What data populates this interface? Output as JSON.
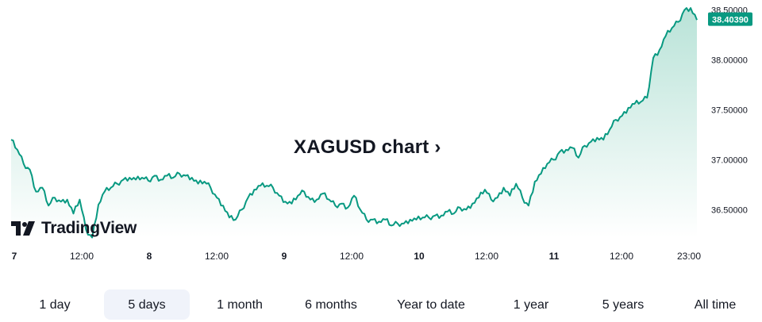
{
  "chart_data": {
    "type": "area",
    "symbol": "XAGUSD",
    "title": "XAGUSD chart",
    "title_arrow": "›",
    "ylim": [
      36.24,
      38.6
    ],
    "y_ticks": [
      "38.50000",
      "38.00000",
      "37.50000",
      "37.00000",
      "36.50000"
    ],
    "y_tick_values": [
      38.5,
      38.0,
      37.5,
      37.0,
      36.5
    ],
    "x_ticks": [
      {
        "label": "7",
        "day": true
      },
      {
        "label": "12:00",
        "day": false
      },
      {
        "label": "8",
        "day": true
      },
      {
        "label": "12:00",
        "day": false
      },
      {
        "label": "9",
        "day": true
      },
      {
        "label": "12:00",
        "day": false
      },
      {
        "label": "10",
        "day": true
      },
      {
        "label": "12:00",
        "day": false
      },
      {
        "label": "11",
        "day": true
      },
      {
        "label": "12:00",
        "day": false
      },
      {
        "label": "23:00",
        "day": false
      }
    ],
    "last_price": 38.4039,
    "last_price_label": "38.40390",
    "series": [
      {
        "x": [
          0,
          1,
          2,
          3,
          4,
          5,
          6,
          7,
          8,
          9,
          10,
          11,
          12,
          13,
          14,
          15,
          16,
          17,
          18,
          19,
          20,
          21,
          22,
          23,
          24,
          25,
          26,
          27,
          28,
          29,
          30,
          31,
          32,
          33,
          34,
          35,
          36,
          37,
          38,
          39,
          40,
          41,
          42,
          43,
          44,
          45,
          46,
          47,
          48,
          49,
          50,
          51,
          52,
          53,
          54,
          55,
          56,
          57,
          58,
          59,
          60,
          61,
          62,
          63,
          64,
          65,
          66,
          67,
          68,
          69,
          70,
          71,
          72,
          73,
          74,
          75,
          76,
          77,
          78,
          79,
          80,
          81,
          82,
          83,
          84,
          85,
          86,
          87,
          88,
          89,
          90,
          91,
          92,
          93,
          94,
          95,
          96,
          97,
          98,
          99,
          100,
          101,
          102,
          103,
          104,
          105,
          106,
          107,
          108,
          109,
          110
        ],
        "values": [
          37.2,
          37.1,
          36.96,
          36.9,
          36.68,
          36.72,
          36.54,
          36.62,
          36.58,
          36.6,
          36.46,
          36.6,
          36.3,
          36.22,
          36.55,
          36.68,
          36.72,
          36.76,
          36.8,
          36.82,
          36.8,
          36.82,
          36.79,
          36.84,
          36.8,
          36.84,
          36.82,
          36.86,
          36.84,
          36.82,
          36.76,
          36.78,
          36.72,
          36.62,
          36.54,
          36.42,
          36.4,
          36.5,
          36.62,
          36.7,
          36.74,
          36.74,
          36.72,
          36.64,
          36.58,
          36.56,
          36.64,
          36.68,
          36.6,
          36.6,
          36.66,
          36.6,
          36.54,
          36.56,
          36.52,
          36.64,
          36.5,
          36.4,
          36.4,
          36.38,
          36.4,
          36.34,
          36.36,
          36.36,
          36.4,
          36.4,
          36.42,
          36.42,
          36.44,
          36.44,
          36.48,
          36.46,
          36.52,
          36.5,
          36.56,
          36.62,
          36.7,
          36.6,
          36.62,
          36.72,
          36.64,
          36.76,
          36.62,
          36.54,
          36.78,
          36.86,
          36.96,
          37.0,
          37.08,
          37.1,
          37.12,
          37.02,
          37.14,
          37.18,
          37.22,
          37.2,
          37.3,
          37.4,
          37.44,
          37.52,
          37.56,
          37.58,
          37.62,
          38.02,
          38.1,
          38.24,
          38.32,
          38.38,
          38.5,
          38.52,
          38.4
        ]
      }
    ],
    "line_color": "#089981",
    "fill_color_top": "#b9e3d8",
    "fill_color_bottom": "#ffffff",
    "grid": false,
    "legend": "none"
  },
  "watermark": {
    "text": "TradingView",
    "icon": "tradingview-logo-icon"
  },
  "range_tabs": [
    {
      "label": "1 day",
      "active": false
    },
    {
      "label": "5 days",
      "active": true
    },
    {
      "label": "1 month",
      "active": false
    },
    {
      "label": "6 months",
      "active": false
    },
    {
      "label": "Year to date",
      "active": false
    },
    {
      "label": "1 year",
      "active": false
    },
    {
      "label": "5 years",
      "active": false
    },
    {
      "label": "All time",
      "active": false
    }
  ],
  "colors": {
    "accent": "#089981",
    "text": "#131722",
    "active_tab_bg": "#f0f3fa"
  }
}
